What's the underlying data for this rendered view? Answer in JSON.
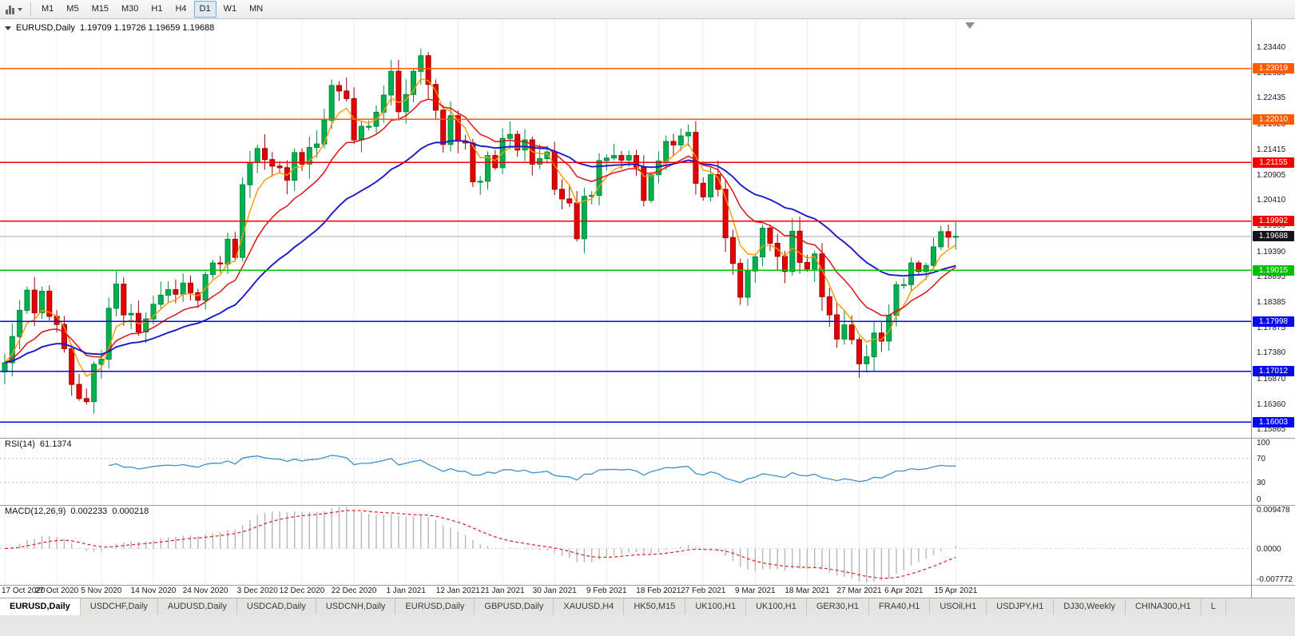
{
  "toolbar": {
    "timeframes": [
      "M1",
      "M5",
      "M15",
      "M30",
      "H1",
      "H4",
      "D1",
      "W1",
      "MN"
    ],
    "selected": "D1"
  },
  "chart_header": {
    "symbol": "EURUSD,Daily",
    "quotes": "1.19709 1.19726 1.19659 1.19688"
  },
  "tabs": {
    "active_index": 0,
    "items": [
      "EURUSD,Daily",
      "USDCHF,Daily",
      "AUDUSD,Daily",
      "USDCAD,Daily",
      "USDCNH,Daily",
      "EURUSD,Daily",
      "GBPUSD,Daily",
      "XAUUSD,H4",
      "HK50,M15",
      "UK100,H1",
      "UK100,H1",
      "GER30,H1",
      "FRA40,H1",
      "USOil,H1",
      "USDJPY,H1",
      "DJ30,Weekly",
      "CHINA300,H1",
      "L"
    ],
    "active_label": "EURUSD,Daily"
  },
  "chart_data": {
    "type": "candlestick",
    "symbol": "EURUSD",
    "timeframe": "Daily",
    "title": "EURUSD,Daily",
    "last_candle": {
      "open": 1.19709,
      "high": 1.19726,
      "low": 1.19659,
      "close": 1.19688
    },
    "up_color": "#00b050",
    "up_border": "#008a3c",
    "down_color": "#e60000",
    "down_border": "#9e0000",
    "first_open": 1.17,
    "closes": [
      1.1718,
      1.177,
      1.1822,
      1.1862,
      1.1817,
      1.186,
      1.181,
      1.1794,
      1.1746,
      1.1675,
      1.1647,
      1.1641,
      1.1715,
      1.1725,
      1.1826,
      1.1874,
      1.1813,
      1.1816,
      1.1779,
      1.1805,
      1.1834,
      1.1852,
      1.1863,
      1.1854,
      1.1876,
      1.1857,
      1.1842,
      1.1893,
      1.1916,
      1.1914,
      1.1963,
      1.1927,
      1.2071,
      1.2115,
      1.2143,
      1.2121,
      1.2108,
      1.2105,
      1.208,
      1.2135,
      1.2112,
      1.2145,
      1.2152,
      1.2199,
      1.2268,
      1.2257,
      1.2242,
      1.216,
      1.2187,
      1.2187,
      1.2215,
      1.2249,
      1.2296,
      1.2216,
      1.225,
      1.2296,
      1.2327,
      1.227,
      1.2219,
      1.2151,
      1.2208,
      1.2158,
      1.2154,
      1.2077,
      1.2078,
      1.2129,
      1.2105,
      1.2163,
      1.2171,
      1.214,
      1.216,
      1.2112,
      1.2123,
      1.2136,
      1.2062,
      1.2043,
      1.2035,
      1.1964,
      1.2048,
      1.205,
      1.2119,
      1.2124,
      1.2129,
      1.212,
      1.2129,
      1.2106,
      1.204,
      1.2091,
      1.2118,
      1.2157,
      1.215,
      1.2168,
      1.2175,
      1.2074,
      1.2047,
      1.2091,
      1.2062,
      1.1966,
      1.1915,
      1.1848,
      1.19,
      1.1928,
      1.1985,
      1.1955,
      1.1929,
      1.1899,
      1.1979,
      1.1917,
      1.1904,
      1.1934,
      1.1849,
      1.1813,
      1.1765,
      1.1793,
      1.1764,
      1.1716,
      1.173,
      1.1777,
      1.1761,
      1.1812,
      1.1873,
      1.1873,
      1.1916,
      1.1899,
      1.1911,
      1.1948,
      1.1978,
      1.1967,
      1.19688
    ],
    "x_labels": [
      "17 Oct 2020",
      "27 Oct 2020",
      "5 Nov 2020",
      "14 Nov 2020",
      "24 Nov 2020",
      "3 Dec 2020",
      "12 Dec 2020",
      "22 Dec 2020",
      "1 Jan 2021",
      "12 Jan 2021",
      "21 Jan 2021",
      "30 Jan 2021",
      "9 Feb 2021",
      "18 Feb 2021",
      "27 Feb 2021",
      "9 Mar 2021",
      "18 Mar 2021",
      "27 Mar 2021",
      "6 Apr 2021",
      "15 Apr 2021"
    ],
    "price_ticks": [
      "1.23440",
      "1.22930",
      "1.22435",
      "1.21925",
      "1.21415",
      "1.20905",
      "1.20410",
      "1.19900",
      "1.19390",
      "1.18895",
      "1.18385",
      "1.17875",
      "1.17380",
      "1.16870",
      "1.16360",
      "1.15865"
    ],
    "horizontal_levels": [
      {
        "price": 1.23019,
        "label": "1.23019",
        "color": "#ff5a00"
      },
      {
        "price": 1.2201,
        "label": "1.22010",
        "color": "#ff5a00"
      },
      {
        "price": 1.21155,
        "label": "1.21155",
        "color": "#f40000"
      },
      {
        "price": 1.19992,
        "label": "1.19992",
        "color": "#f40000"
      },
      {
        "price": 1.19015,
        "label": "1.19015",
        "color": "#00c000"
      },
      {
        "price": 1.17998,
        "label": "1.17998",
        "color": "#0707f0"
      },
      {
        "price": 1.17012,
        "label": "1.17012",
        "color": "#0707f0"
      },
      {
        "price": 1.16003,
        "label": "1.16003",
        "color": "#0707f0"
      }
    ],
    "bid": {
      "price": 1.19688,
      "label": "1.19688",
      "line_color": "#aaaaaa",
      "badge_color": "#14141e"
    },
    "moving_averages": [
      {
        "name": "ma-fast",
        "method": "EMA",
        "period": 5,
        "color": "#ff9800",
        "width": 1.4
      },
      {
        "name": "ma-medium",
        "method": "EMA",
        "period": 13,
        "color": "#dc1414",
        "width": 1.5
      },
      {
        "name": "ma-slow",
        "method": "EMA",
        "period": 30,
        "color": "#1a1ac8",
        "width": 1.9
      }
    ],
    "rsi": {
      "label": "RSI(14)",
      "value_text": "61.1374",
      "period": 14,
      "current": 61.1374,
      "levels": [
        70,
        30
      ],
      "axis_labels": [
        "100",
        "70",
        "30",
        "0"
      ],
      "line_color": "#3c8fd0"
    },
    "macd": {
      "label": "MACD(12,26,9)",
      "macd_text": "0.002233",
      "signal_text": "0.000218",
      "fast": 12,
      "slow": 26,
      "signal": 9,
      "current_macd": 0.002233,
      "current_signal": 0.000218,
      "scale_max": 0.009478,
      "scale_min": -0.007772,
      "axis_labels": [
        {
          "text": "0.009478",
          "value": 0.009478
        },
        {
          "text": "0.0000",
          "value": 0
        },
        {
          "text": "-0.007772",
          "value": -0.007772
        }
      ],
      "histogram_color": "#b6b6b6",
      "signal_color": "#e02020"
    }
  }
}
